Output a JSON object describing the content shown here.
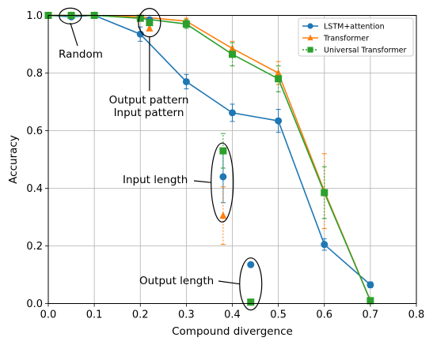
{
  "chart_data": {
    "type": "line",
    "xlabel": "Compound divergence",
    "ylabel": "Accuracy",
    "xlim": [
      0.0,
      0.8
    ],
    "ylim": [
      0.0,
      1.0
    ],
    "xticks": [
      "0.0",
      "0.1",
      "0.2",
      "0.3",
      "0.4",
      "0.5",
      "0.6",
      "0.7",
      "0.8"
    ],
    "yticks": [
      "0.0",
      "0.2",
      "0.4",
      "0.6",
      "0.8",
      "1.0"
    ],
    "grid": true,
    "legend_position": "top-right",
    "series": [
      {
        "name": "LSTM+attention",
        "color": "#1f77b4",
        "marker": "circle",
        "linestyle": "solid",
        "x": [
          0.0,
          0.05,
          0.1,
          0.2,
          0.3,
          0.4,
          0.5,
          0.6,
          0.7
        ],
        "y": [
          1.0,
          0.995,
          1.0,
          0.935,
          0.77,
          0.662,
          0.634,
          0.205,
          0.065
        ],
        "err": [
          0.0,
          0.003,
          0.0,
          0.025,
          0.025,
          0.03,
          0.04,
          0.02,
          0.01
        ]
      },
      {
        "name": "Transformer",
        "color": "#ff7f0e",
        "marker": "triangle",
        "linestyle": "solid",
        "x": [
          0.0,
          0.05,
          0.1,
          0.2,
          0.3,
          0.4,
          0.5,
          0.6,
          0.7
        ],
        "y": [
          1.0,
          1.0,
          1.0,
          0.995,
          0.98,
          0.885,
          0.8,
          0.39,
          0.01
        ],
        "err": [
          0.0,
          0.0,
          0.0,
          0.003,
          0.01,
          0.025,
          0.04,
          0.13,
          0.005
        ]
      },
      {
        "name": "Universal Transformer",
        "color": "#2ca02c",
        "marker": "square",
        "linestyle": "solid",
        "x": [
          0.0,
          0.05,
          0.1,
          0.2,
          0.3,
          0.4,
          0.5,
          0.6,
          0.7
        ],
        "y": [
          1.0,
          1.0,
          1.0,
          0.99,
          0.97,
          0.865,
          0.78,
          0.385,
          0.01
        ],
        "err": [
          0.0,
          0.0,
          0.0,
          0.005,
          0.015,
          0.04,
          0.045,
          0.09,
          0.005
        ]
      }
    ],
    "extra_points": [
      {
        "series": "LSTM+attention",
        "x": 0.38,
        "y": 0.44,
        "err": 0.09,
        "marker": "circle",
        "color": "#1f77b4"
      },
      {
        "series": "Transformer",
        "x": 0.38,
        "y": 0.305,
        "err": 0.1,
        "marker": "triangle",
        "color": "#ff7f0e"
      },
      {
        "series": "Universal Transformer",
        "x": 0.38,
        "y": 0.53,
        "err": 0.06,
        "marker": "square",
        "color": "#2ca02c"
      },
      {
        "series": "LSTM+attention",
        "x": 0.22,
        "y": 0.985,
        "err": 0.0,
        "marker": "circle",
        "color": "#1f77b4"
      },
      {
        "series": "Transformer",
        "x": 0.22,
        "y": 0.955,
        "err": 0.0,
        "marker": "triangle",
        "color": "#ff7f0e"
      },
      {
        "series": "Universal Transformer",
        "x": 0.22,
        "y": 0.975,
        "err": 0.0,
        "marker": "square",
        "color": "#2ca02c"
      },
      {
        "series": "LSTM+attention",
        "x": 0.44,
        "y": 0.135,
        "err": 0.0,
        "marker": "circle",
        "color": "#1f77b4"
      },
      {
        "series": "Universal Transformer",
        "x": 0.44,
        "y": 0.005,
        "err": 0.0,
        "marker": "square",
        "color": "#2ca02c"
      }
    ],
    "annotations": [
      {
        "id": "random",
        "lines": [
          "Random"
        ],
        "target_x": 0.05,
        "target_y": 0.995
      },
      {
        "id": "pattern",
        "lines": [
          "Output pattern",
          "Input pattern"
        ],
        "target_x": 0.22,
        "target_y": 0.97
      },
      {
        "id": "input-length",
        "lines": [
          "Input length"
        ],
        "target_x": 0.38,
        "target_y": 0.42
      },
      {
        "id": "output-length",
        "lines": [
          "Output length"
        ],
        "target_x": 0.44,
        "target_y": 0.065
      }
    ]
  }
}
